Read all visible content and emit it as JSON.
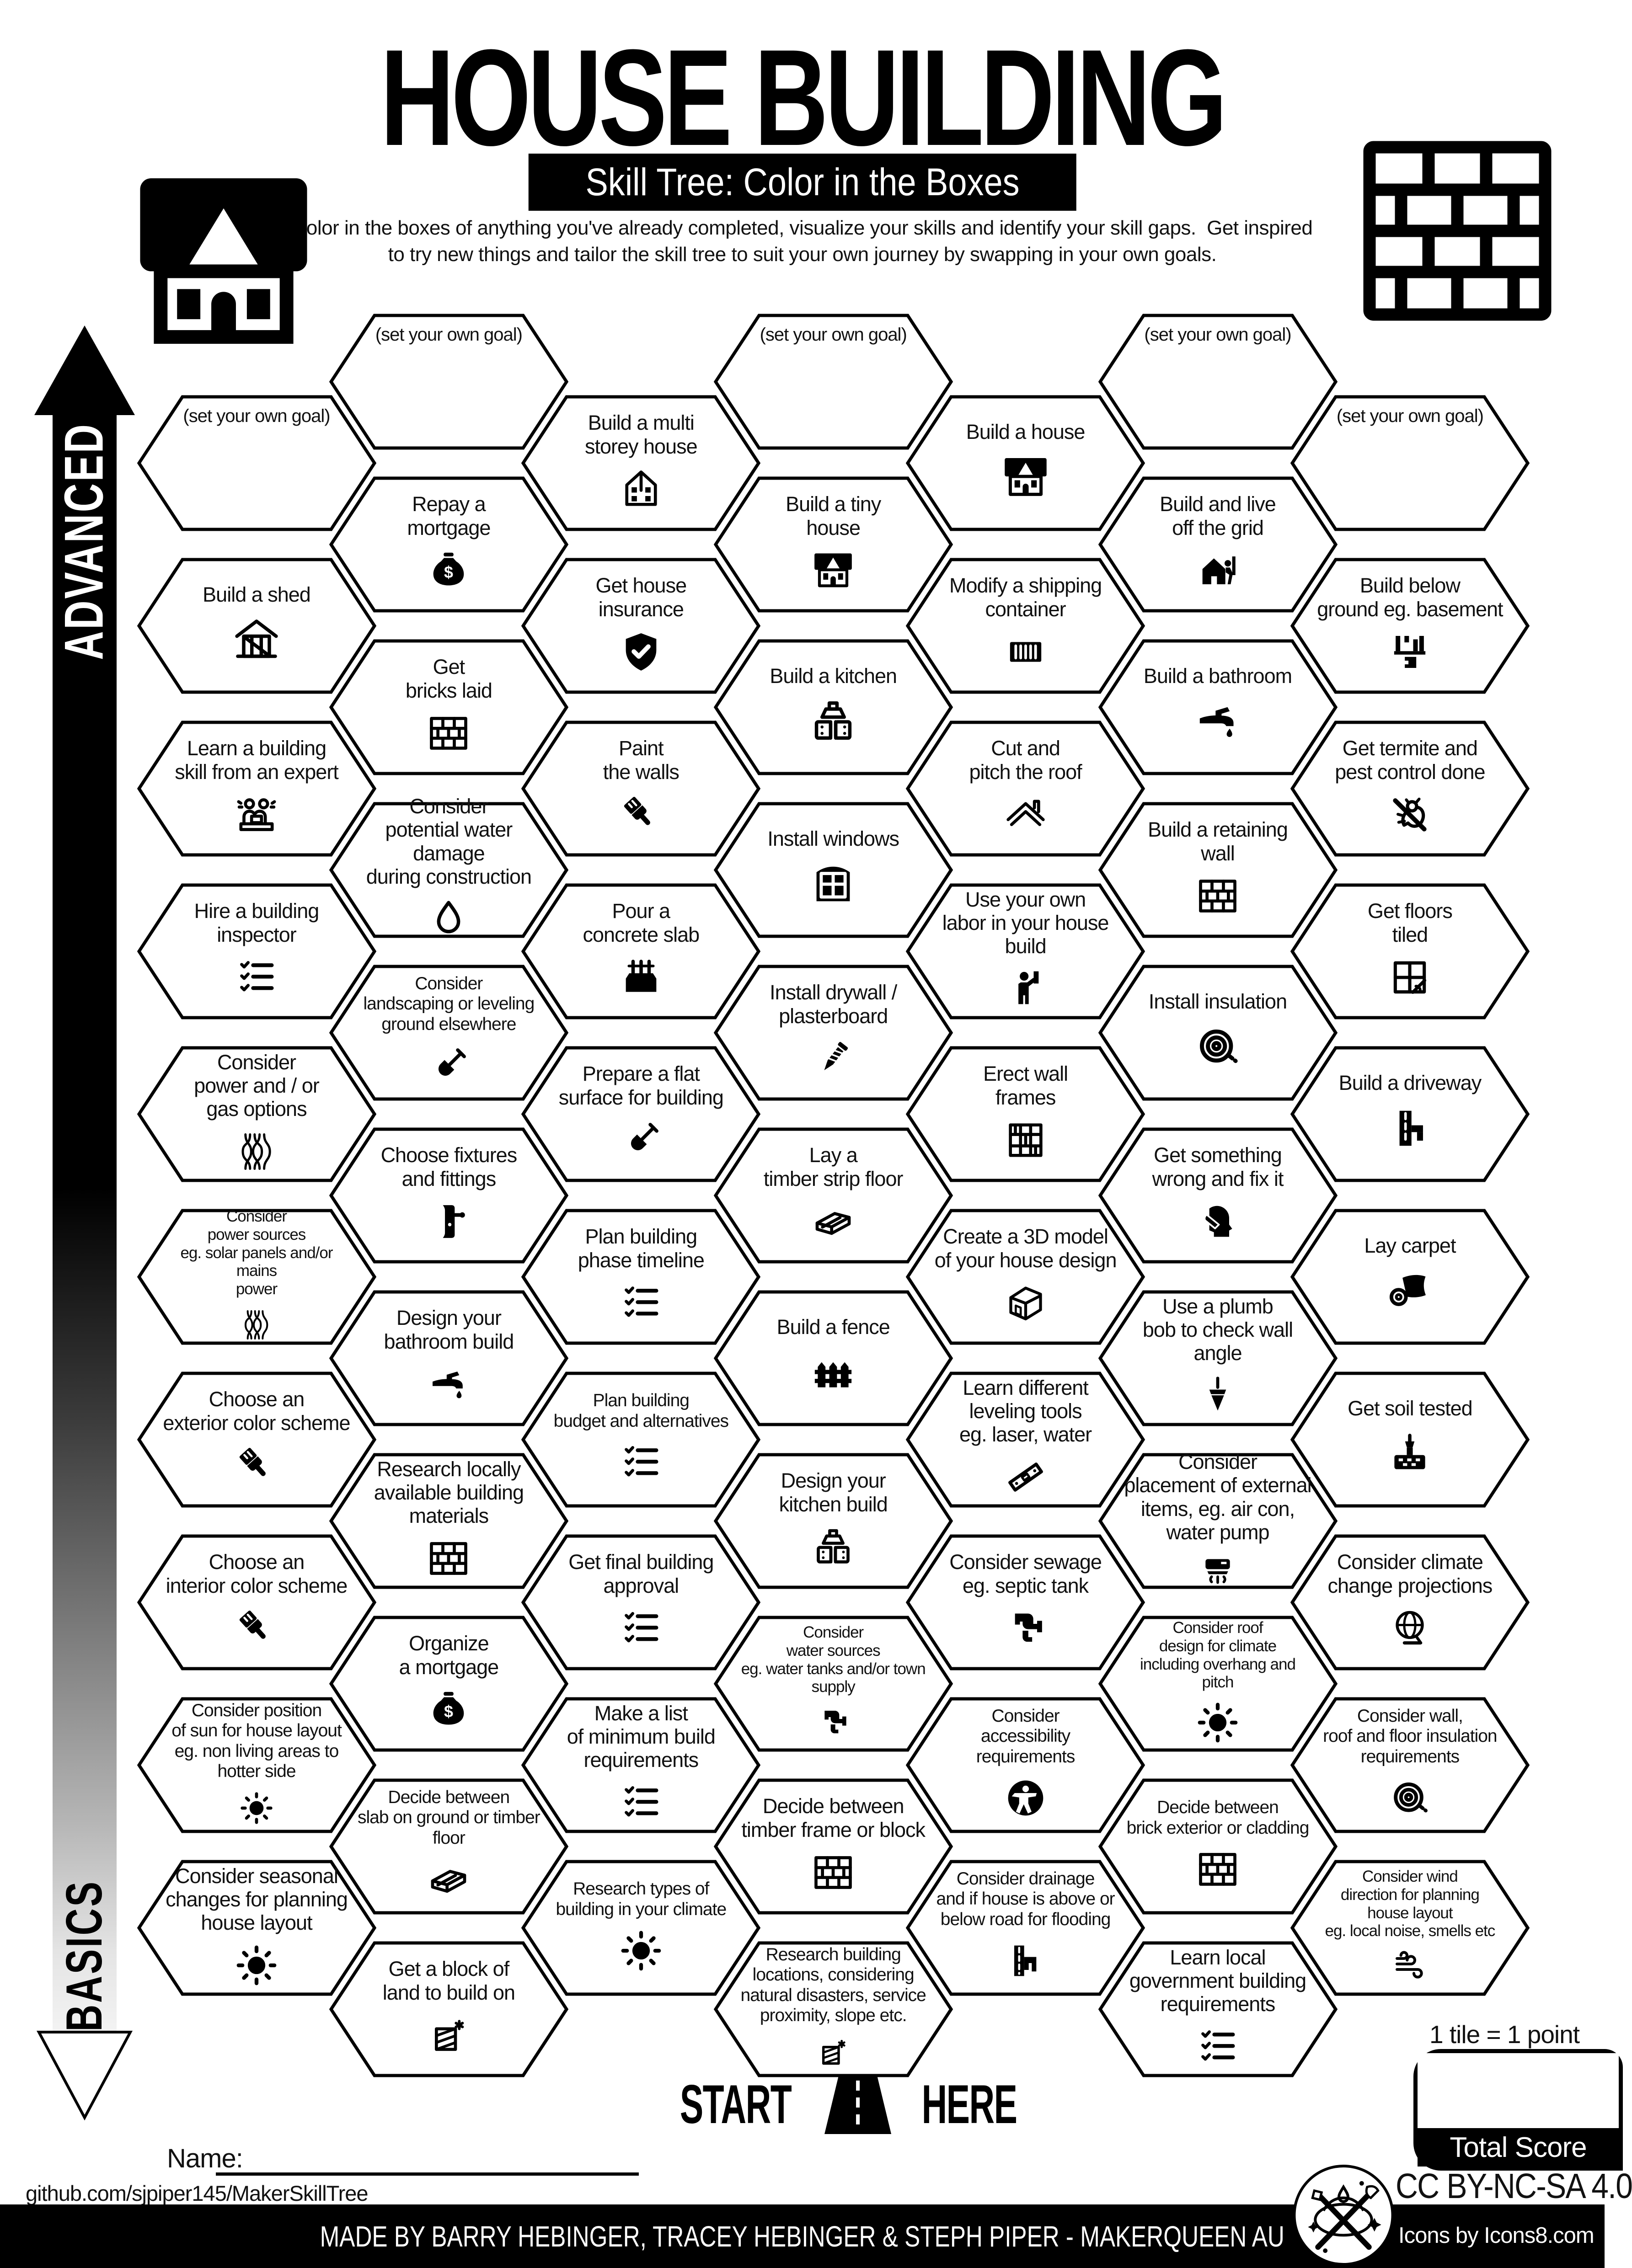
{
  "header": {
    "title": "HOUSE BUILDING",
    "subtitle": "Skill Tree: Color in the Boxes",
    "description": "Color in the boxes of anything you've already completed, visualize your skills and identify your skill gaps.  Get inspired\nto try new things and tailor the skill tree to suit your own journey by swapping in your own goals.",
    "house_logo": "house-logo",
    "brick_logo": "brick-wall-logo"
  },
  "axis": {
    "top_label": "ADVANCED",
    "bottom_label": "BASICS"
  },
  "start": {
    "start_label": "START",
    "here_label": "HERE"
  },
  "name_field": {
    "label": "Name:"
  },
  "score": {
    "tile_note": "1 tile = 1 point",
    "total_label": "Total Score"
  },
  "footer": {
    "github": "github.com/sjpiper145/MakerSkillTree",
    "credit": "MADE BY BARRY HEBINGER, TRACEY HEBINGER & STEPH PIPER  -  MAKERQUEEN AU",
    "license": "CC BY-NC-SA 4.0",
    "icons_credit": "Icons by Icons8.com"
  },
  "colors": {
    "ink": "#000000",
    "paper": "#ffffff"
  },
  "hexes": [
    {
      "c": 0,
      "r": 0,
      "label": "(set your own goal)",
      "icon": "goal"
    },
    {
      "c": 0,
      "r": 1,
      "label": "Build a shed",
      "icon": "shed"
    },
    {
      "c": 0,
      "r": 2,
      "label": "Learn a building\nskill from an expert",
      "icon": "experts"
    },
    {
      "c": 0,
      "r": 3,
      "label": "Hire a building\ninspector",
      "icon": "checklist"
    },
    {
      "c": 0,
      "r": 4,
      "label": "Consider\npower and / or\ngas options",
      "icon": "cables"
    },
    {
      "c": 0,
      "r": 5,
      "label": "Consider\npower sources\neg. solar panels and/or mains\npower",
      "icon": "cables"
    },
    {
      "c": 0,
      "r": 6,
      "label": "Choose an\nexterior color scheme",
      "icon": "brush"
    },
    {
      "c": 0,
      "r": 7,
      "label": "Choose an\ninterior color scheme",
      "icon": "brush"
    },
    {
      "c": 0,
      "r": 8,
      "label": "Consider position\nof sun for house layout\neg. non living areas to\nhotter side",
      "icon": "sun"
    },
    {
      "c": 0,
      "r": 9,
      "label": "Consider seasonal\nchanges for planning\nhouse layout",
      "icon": "sun"
    },
    {
      "c": 1,
      "r": 0,
      "label": "(set your own goal)",
      "icon": "goal"
    },
    {
      "c": 1,
      "r": 1,
      "label": "Repay a\nmortgage",
      "icon": "moneybag"
    },
    {
      "c": 1,
      "r": 2,
      "label": "Get\nbricks laid",
      "icon": "bricks"
    },
    {
      "c": 1,
      "r": 3,
      "label": "Consider\npotential water damage\nduring construction",
      "icon": "drop"
    },
    {
      "c": 1,
      "r": 4,
      "label": "Consider\nlandscaping or leveling\nground elsewhere",
      "icon": "shovel"
    },
    {
      "c": 1,
      "r": 5,
      "label": "Choose fixtures\nand fittings",
      "icon": "handle"
    },
    {
      "c": 1,
      "r": 6,
      "label": "Design your\nbathroom build",
      "icon": "tap"
    },
    {
      "c": 1,
      "r": 7,
      "label": "Research locally\navailable building\nmaterials",
      "icon": "bricks"
    },
    {
      "c": 1,
      "r": 8,
      "label": "Organize\na mortgage",
      "icon": "moneybag"
    },
    {
      "c": 1,
      "r": 9,
      "label": "Decide between\nslab on ground or timber\nfloor",
      "icon": "timber"
    },
    {
      "c": 1,
      "r": 10,
      "label": "Get a block of\nland to build on",
      "icon": "land"
    },
    {
      "c": 2,
      "r": 0,
      "label": "Build a multi\nstorey house",
      "icon": "multistorey"
    },
    {
      "c": 2,
      "r": 1,
      "label": "Get house\ninsurance",
      "icon": "shield"
    },
    {
      "c": 2,
      "r": 2,
      "label": "Paint\nthe walls",
      "icon": "brush"
    },
    {
      "c": 2,
      "r": 3,
      "label": "Pour a\nconcrete slab",
      "icon": "slab"
    },
    {
      "c": 2,
      "r": 4,
      "label": "Prepare a flat\nsurface for building",
      "icon": "shovel"
    },
    {
      "c": 2,
      "r": 5,
      "label": "Plan building\nphase timeline",
      "icon": "checklist"
    },
    {
      "c": 2,
      "r": 6,
      "label": "Plan building\nbudget and alternatives",
      "icon": "checklist"
    },
    {
      "c": 2,
      "r": 7,
      "label": "Get final building\napproval",
      "icon": "checklist"
    },
    {
      "c": 2,
      "r": 8,
      "label": "Make a list\nof minimum build\nrequirements",
      "icon": "checklist"
    },
    {
      "c": 2,
      "r": 9,
      "label": "Research types of\nbuilding in your climate",
      "icon": "sun"
    },
    {
      "c": 3,
      "r": 0,
      "label": "(set your own goal)",
      "icon": "goal"
    },
    {
      "c": 3,
      "r": 1,
      "label": "Build a tiny\nhouse",
      "icon": "tinyhouse"
    },
    {
      "c": 3,
      "r": 2,
      "label": "Build a kitchen",
      "icon": "kitchen"
    },
    {
      "c": 3,
      "r": 3,
      "label": "Install windows",
      "icon": "window"
    },
    {
      "c": 3,
      "r": 4,
      "label": "Install drywall /\nplasterboard",
      "icon": "screw"
    },
    {
      "c": 3,
      "r": 5,
      "label": "Lay a\ntimber strip floor",
      "icon": "timber"
    },
    {
      "c": 3,
      "r": 6,
      "label": "Build a fence",
      "icon": "fence"
    },
    {
      "c": 3,
      "r": 7,
      "label": "Design your\nkitchen build",
      "icon": "kitchen"
    },
    {
      "c": 3,
      "r": 8,
      "label": "Consider\nwater sources\neg. water tanks and/or town\nsupply",
      "icon": "pipe"
    },
    {
      "c": 3,
      "r": 9,
      "label": "Decide between\ntimber frame or block",
      "icon": "bricks"
    },
    {
      "c": 3,
      "r": 10,
      "label": "Research building\nlocations, considering\nnatural disasters, service\nproximity, slope etc.",
      "icon": "land"
    },
    {
      "c": 4,
      "r": 0,
      "label": "Build a house",
      "icon": "house"
    },
    {
      "c": 4,
      "r": 1,
      "label": "Modify a shipping\ncontainer",
      "icon": "container"
    },
    {
      "c": 4,
      "r": 2,
      "label": "Cut and\npitch the roof",
      "icon": "roof"
    },
    {
      "c": 4,
      "r": 3,
      "label": "Use your own\nlabor in your house\nbuild",
      "icon": "worker"
    },
    {
      "c": 4,
      "r": 4,
      "label": "Erect wall\nframes",
      "icon": "frames"
    },
    {
      "c": 4,
      "r": 5,
      "label": "Create a 3D model\nof your house design",
      "icon": "model3d"
    },
    {
      "c": 4,
      "r": 6,
      "label": "Learn different\nleveling tools\neg. laser, water",
      "icon": "level"
    },
    {
      "c": 4,
      "r": 7,
      "label": "Consider sewage\neg. septic tank",
      "icon": "pipe"
    },
    {
      "c": 4,
      "r": 8,
      "label": "Consider\naccessibility requirements",
      "icon": "access"
    },
    {
      "c": 4,
      "r": 9,
      "label": "Consider drainage\nand if house is above or\nbelow road for flooding",
      "icon": "drain"
    },
    {
      "c": 5,
      "r": 0,
      "label": "(set your own goal)",
      "icon": "goal"
    },
    {
      "c": 5,
      "r": 1,
      "label": "Build and live\noff the grid",
      "icon": "offgrid"
    },
    {
      "c": 5,
      "r": 2,
      "label": "Build a bathroom",
      "icon": "tap"
    },
    {
      "c": 5,
      "r": 3,
      "label": "Build a retaining\nwall",
      "icon": "bricks"
    },
    {
      "c": 5,
      "r": 4,
      "label": "Install insulation",
      "icon": "insulation"
    },
    {
      "c": 5,
      "r": 5,
      "label": "Get something\nwrong and fix it",
      "icon": "facepalm"
    },
    {
      "c": 5,
      "r": 6,
      "label": "Use a plumb\nbob to check wall\nangle",
      "icon": "plumb"
    },
    {
      "c": 5,
      "r": 7,
      "label": "Consider\nplacement of external\nitems, eg. air con,\nwater pump",
      "icon": "aircon"
    },
    {
      "c": 5,
      "r": 8,
      "label": "Consider roof\ndesign for climate\nincluding overhang and pitch",
      "icon": "sun"
    },
    {
      "c": 5,
      "r": 9,
      "label": "Decide between\nbrick exterior or cladding",
      "icon": "bricks"
    },
    {
      "c": 5,
      "r": 10,
      "label": "Learn local\ngovernment building\nrequirements",
      "icon": "checklist"
    },
    {
      "c": 6,
      "r": 0,
      "label": "(set your own goal)",
      "icon": "goal"
    },
    {
      "c": 6,
      "r": 1,
      "label": "Build below\nground eg. basement",
      "icon": "basement"
    },
    {
      "c": 6,
      "r": 2,
      "label": "Get termite and\npest control done",
      "icon": "pest"
    },
    {
      "c": 6,
      "r": 3,
      "label": "Get floors\ntiled",
      "icon": "tiles"
    },
    {
      "c": 6,
      "r": 4,
      "label": "Build a driveway",
      "icon": "driveway"
    },
    {
      "c": 6,
      "r": 5,
      "label": "Lay carpet",
      "icon": "carpet"
    },
    {
      "c": 6,
      "r": 6,
      "label": "Get soil tested",
      "icon": "soil"
    },
    {
      "c": 6,
      "r": 7,
      "label": "Consider climate\nchange projections",
      "icon": "globe"
    },
    {
      "c": 6,
      "r": 8,
      "label": "Consider wall,\nroof and floor insulation\nrequirements",
      "icon": "insulation"
    },
    {
      "c": 6,
      "r": 9,
      "label": "Consider wind\ndirection for planning\nhouse layout\neg. local noise, smells etc",
      "icon": "wind"
    }
  ]
}
